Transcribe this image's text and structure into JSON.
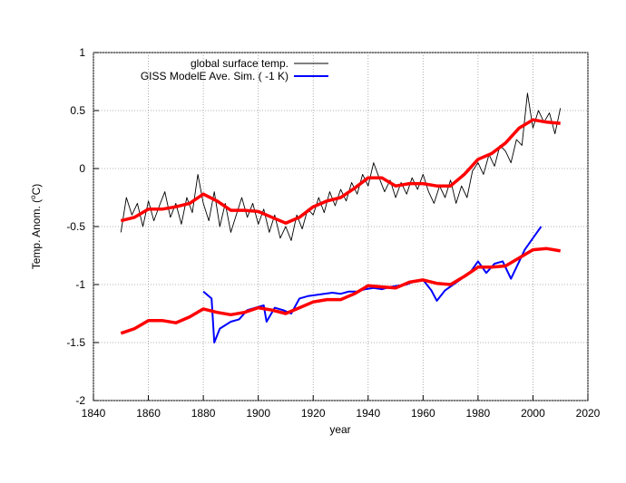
{
  "chart_data": {
    "type": "line",
    "xlabel": "year",
    "ylabel": {
      "before": "Temp. Anom. (",
      "sup": "o",
      "after": "C)"
    },
    "xlim": [
      1840,
      2020
    ],
    "xticks": [
      1840,
      1860,
      1880,
      1900,
      1920,
      1940,
      1960,
      1980,
      2000,
      2020
    ],
    "ylim": [
      -2,
      1
    ],
    "yticks": [
      -2,
      -1.5,
      -1,
      -0.5,
      0,
      0.5,
      1
    ],
    "grid": true,
    "legend": "top-left",
    "series": [
      {
        "name": "global surface temp.",
        "color": "#000000",
        "width": 0.9,
        "x": [
          1850,
          1852,
          1854,
          1856,
          1858,
          1860,
          1862,
          1864,
          1866,
          1868,
          1870,
          1872,
          1874,
          1876,
          1878,
          1880,
          1882,
          1884,
          1886,
          1888,
          1890,
          1892,
          1894,
          1896,
          1898,
          1900,
          1902,
          1904,
          1906,
          1908,
          1910,
          1912,
          1914,
          1916,
          1918,
          1920,
          1922,
          1924,
          1926,
          1928,
          1930,
          1932,
          1934,
          1936,
          1938,
          1940,
          1942,
          1944,
          1946,
          1948,
          1950,
          1952,
          1954,
          1956,
          1958,
          1960,
          1962,
          1964,
          1966,
          1968,
          1970,
          1972,
          1974,
          1976,
          1978,
          1980,
          1982,
          1984,
          1986,
          1988,
          1990,
          1992,
          1994,
          1996,
          1998,
          2000,
          2002,
          2004,
          2006,
          2008,
          2010
        ],
        "values": [
          -0.55,
          -0.25,
          -0.4,
          -0.3,
          -0.5,
          -0.28,
          -0.45,
          -0.32,
          -0.2,
          -0.42,
          -0.3,
          -0.48,
          -0.25,
          -0.38,
          -0.05,
          -0.3,
          -0.45,
          -0.2,
          -0.5,
          -0.3,
          -0.55,
          -0.4,
          -0.25,
          -0.42,
          -0.3,
          -0.48,
          -0.35,
          -0.55,
          -0.4,
          -0.6,
          -0.5,
          -0.62,
          -0.4,
          -0.52,
          -0.35,
          -0.4,
          -0.25,
          -0.38,
          -0.2,
          -0.32,
          -0.18,
          -0.28,
          -0.12,
          -0.22,
          -0.05,
          -0.15,
          0.05,
          -0.08,
          -0.2,
          -0.1,
          -0.25,
          -0.12,
          -0.22,
          -0.08,
          -0.18,
          -0.05,
          -0.2,
          -0.3,
          -0.15,
          -0.25,
          -0.1,
          -0.3,
          -0.15,
          -0.25,
          -0.02,
          0.05,
          -0.05,
          0.12,
          0.02,
          0.2,
          0.15,
          0.05,
          0.25,
          0.2,
          0.65,
          0.35,
          0.5,
          0.4,
          0.48,
          0.3,
          0.52
        ]
      },
      {
        "name": "GISS ModelE Ave. Sim. ( -1 K)",
        "color": "#0000ff",
        "width": 2,
        "x": [
          1880,
          1883,
          1884,
          1886,
          1890,
          1893,
          1896,
          1899,
          1902,
          1903,
          1906,
          1909,
          1912,
          1915,
          1918,
          1921,
          1924,
          1927,
          1930,
          1933,
          1936,
          1939,
          1942,
          1945,
          1948,
          1951,
          1954,
          1957,
          1960,
          1963,
          1965,
          1968,
          1971,
          1974,
          1977,
          1980,
          1983,
          1986,
          1989,
          1992,
          1994,
          1997,
          2000,
          2003
        ],
        "values": [
          -1.06,
          -1.12,
          -1.5,
          -1.38,
          -1.32,
          -1.3,
          -1.22,
          -1.2,
          -1.18,
          -1.32,
          -1.2,
          -1.22,
          -1.25,
          -1.12,
          -1.1,
          -1.09,
          -1.08,
          -1.07,
          -1.08,
          -1.06,
          -1.06,
          -1.04,
          -1.03,
          -1.04,
          -1.02,
          -1.01,
          -1.0,
          -0.97,
          -0.96,
          -1.05,
          -1.14,
          -1.05,
          -1.0,
          -0.95,
          -0.9,
          -0.8,
          -0.9,
          -0.82,
          -0.8,
          -0.95,
          -0.85,
          -0.7,
          -0.6,
          -0.5
        ]
      },
      {
        "color": "#ff0000",
        "width": 3.5,
        "x": [
          1850,
          1855,
          1860,
          1865,
          1870,
          1875,
          1880,
          1885,
          1890,
          1895,
          1900,
          1905,
          1910,
          1915,
          1920,
          1925,
          1930,
          1935,
          1940,
          1945,
          1950,
          1955,
          1960,
          1965,
          1970,
          1975,
          1980,
          1985,
          1990,
          1995,
          2000,
          2005,
          2010
        ],
        "values": [
          -0.45,
          -0.42,
          -0.35,
          -0.35,
          -0.33,
          -0.3,
          -0.22,
          -0.28,
          -0.36,
          -0.36,
          -0.37,
          -0.42,
          -0.47,
          -0.42,
          -0.33,
          -0.28,
          -0.25,
          -0.17,
          -0.08,
          -0.08,
          -0.15,
          -0.13,
          -0.13,
          -0.15,
          -0.15,
          -0.05,
          0.08,
          0.13,
          0.22,
          0.35,
          0.42,
          0.4,
          0.39
        ]
      },
      {
        "color": "#ff0000",
        "width": 3.5,
        "x": [
          1850,
          1855,
          1860,
          1865,
          1870,
          1875,
          1880,
          1885,
          1890,
          1895,
          1900,
          1905,
          1910,
          1915,
          1920,
          1925,
          1930,
          1935,
          1940,
          1945,
          1950,
          1955,
          1960,
          1965,
          1970,
          1975,
          1980,
          1985,
          1990,
          1995,
          2000,
          2005,
          2010
        ],
        "values": [
          -1.42,
          -1.38,
          -1.31,
          -1.31,
          -1.33,
          -1.28,
          -1.21,
          -1.24,
          -1.26,
          -1.24,
          -1.2,
          -1.22,
          -1.25,
          -1.2,
          -1.15,
          -1.13,
          -1.13,
          -1.08,
          -1.01,
          -1.02,
          -1.03,
          -0.98,
          -0.96,
          -0.99,
          -1.0,
          -0.93,
          -0.85,
          -0.85,
          -0.84,
          -0.77,
          -0.7,
          -0.69,
          -0.71
        ]
      }
    ]
  }
}
